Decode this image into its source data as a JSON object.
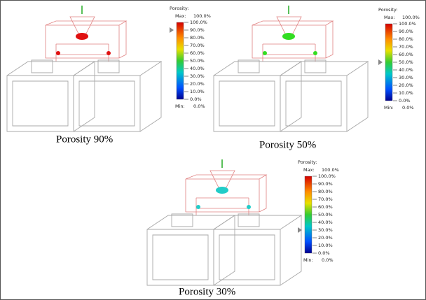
{
  "panels": [
    {
      "caption": "Porosity 90%",
      "legend": {
        "title": "Porosity:",
        "max_label": "Max:",
        "max_value": "100.0%",
        "ticks": [
          "100.0%",
          "90.0%",
          "80.0%",
          "70.0%",
          "60.0%",
          "50.0%",
          "40.0%",
          "30.0%",
          "20.0%",
          "10.0%",
          "0.0%"
        ],
        "min_label": "Min:",
        "min_value": "0.0%"
      }
    },
    {
      "caption": "Porosity 50%",
      "legend": {
        "title": "Porosity:",
        "max_label": "Max:",
        "max_value": "100.0%",
        "ticks": [
          "100.0%",
          "90.0%",
          "80.0%",
          "70.0%",
          "60.0%",
          "50.0%",
          "40.0%",
          "30.0%",
          "20.0%",
          "10.0%",
          "0.0%"
        ],
        "min_label": "Min:",
        "min_value": "0.0%"
      }
    },
    {
      "caption": "Porosity 30%",
      "legend": {
        "title": "Porosity:",
        "max_label": "Max:",
        "max_value": "100.0%",
        "ticks": [
          "100.0%",
          "90.0%",
          "80.0%",
          "70.0%",
          "60.0%",
          "50.0%",
          "40.0%",
          "30.0%",
          "20.0%",
          "10.0%",
          "0.0%"
        ],
        "min_label": "Min:",
        "min_value": "0.0%"
      }
    }
  ]
}
